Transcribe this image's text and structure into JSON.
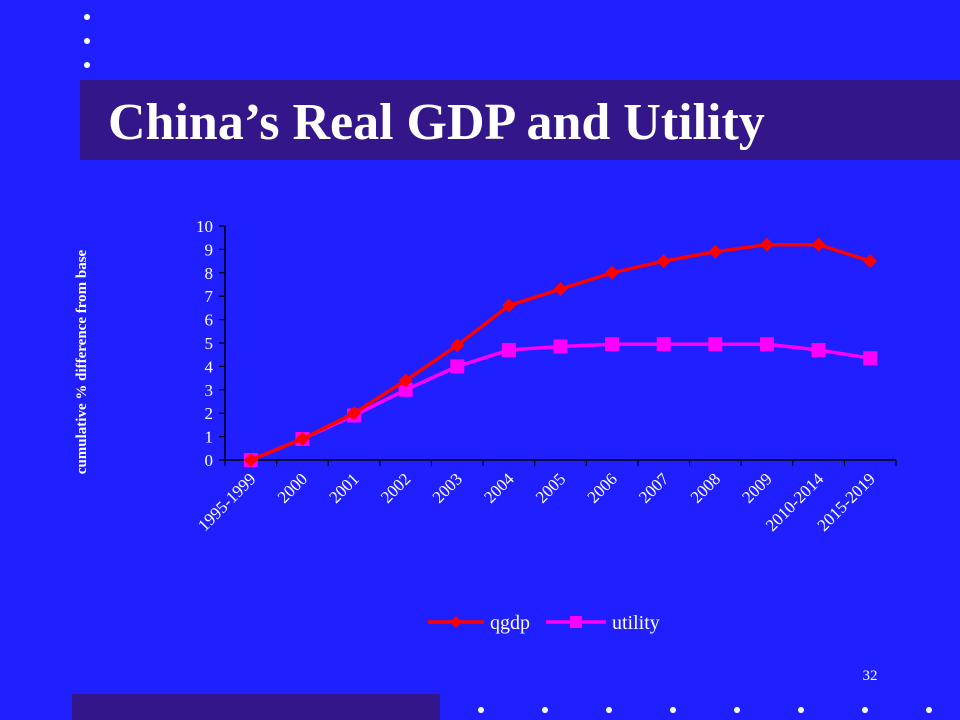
{
  "slide": {
    "title": "China’s Real GDP and Utility",
    "page_number": "32"
  },
  "colors": {
    "background": "#1f1fff",
    "band": "#33168a",
    "qgdp": "#ff0000",
    "utility": "#ff00ff",
    "text": "#ffffff"
  },
  "chart_data": {
    "type": "line",
    "title": "",
    "xlabel": "",
    "ylabel": "cumulative % difference from base",
    "ylim": [
      0,
      10
    ],
    "yticks": [
      "0",
      "1",
      "2",
      "3",
      "4",
      "5",
      "6",
      "7",
      "8",
      "9",
      "10"
    ],
    "categories": [
      "1995-1999",
      "2000",
      "2001",
      "2002",
      "2003",
      "2004",
      "2005",
      "2006",
      "2007",
      "2008",
      "2009",
      "2010-2014",
      "2015-2019"
    ],
    "legend_position": "bottom",
    "series": [
      {
        "name": "qgdp",
        "marker": "diamond",
        "color": "#ff0000",
        "values": [
          0,
          0.9,
          2.0,
          3.4,
          4.9,
          6.6,
          7.3,
          8.0,
          8.5,
          8.9,
          9.2,
          9.2,
          8.5
        ]
      },
      {
        "name": "utility",
        "marker": "square",
        "color": "#ff00ff",
        "values": [
          0,
          0.9,
          1.9,
          3.0,
          4.0,
          4.7,
          4.85,
          4.95,
          4.95,
          4.95,
          4.95,
          4.7,
          4.35
        ]
      }
    ]
  }
}
